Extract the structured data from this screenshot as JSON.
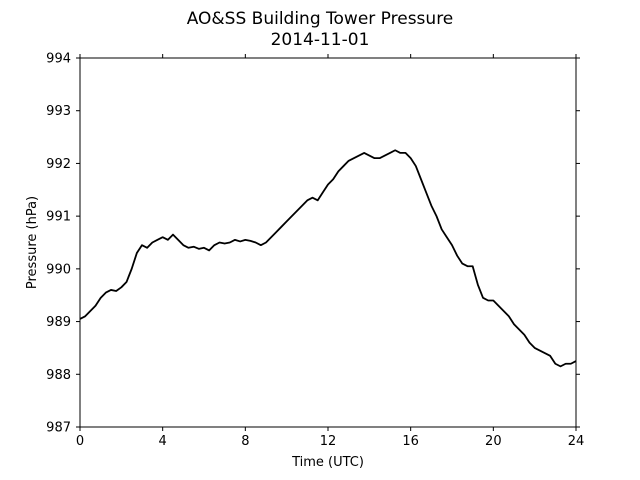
{
  "chart_data": {
    "type": "line",
    "title": "AO&SS Building Tower Pressure",
    "subtitle": "2014-11-01",
    "xlabel": "Time (UTC)",
    "ylabel": "Pressure (hPa)",
    "xlim": [
      0,
      24
    ],
    "ylim": [
      987,
      994
    ],
    "xticks": [
      "0",
      "4",
      "8",
      "12",
      "16",
      "20",
      "24"
    ],
    "yticks": [
      "987",
      "988",
      "989",
      "990",
      "991",
      "992",
      "993",
      "994"
    ],
    "grid": false,
    "line_color": "#000000",
    "x": [
      0,
      0.25,
      0.5,
      0.75,
      1.0,
      1.25,
      1.5,
      1.75,
      2.0,
      2.25,
      2.5,
      2.75,
      3.0,
      3.25,
      3.5,
      3.75,
      4.0,
      4.25,
      4.5,
      4.75,
      5.0,
      5.25,
      5.5,
      5.75,
      6.0,
      6.25,
      6.5,
      6.75,
      7.0,
      7.25,
      7.5,
      7.75,
      8.0,
      8.25,
      8.5,
      8.75,
      9.0,
      9.25,
      9.5,
      9.75,
      10.0,
      10.25,
      10.5,
      10.75,
      11.0,
      11.25,
      11.5,
      11.75,
      12.0,
      12.25,
      12.5,
      12.75,
      13.0,
      13.25,
      13.5,
      13.75,
      14.0,
      14.25,
      14.5,
      14.75,
      15.0,
      15.25,
      15.5,
      15.75,
      16.0,
      16.25,
      16.5,
      16.75,
      17.0,
      17.25,
      17.5,
      17.75,
      18.0,
      18.25,
      18.5,
      18.75,
      19.0,
      19.25,
      19.5,
      19.75,
      20.0,
      20.25,
      20.5,
      20.75,
      21.0,
      21.25,
      21.5,
      21.75,
      22.0,
      22.25,
      22.5,
      22.75,
      23.0,
      23.25,
      23.5,
      23.75,
      24.0
    ],
    "y": [
      989.05,
      989.1,
      989.2,
      989.3,
      989.45,
      989.55,
      989.6,
      989.58,
      989.65,
      989.75,
      990.0,
      990.3,
      990.45,
      990.4,
      990.5,
      990.55,
      990.6,
      990.55,
      990.65,
      990.55,
      990.45,
      990.4,
      990.42,
      990.38,
      990.4,
      990.35,
      990.45,
      990.5,
      990.48,
      990.5,
      990.55,
      990.52,
      990.55,
      990.53,
      990.5,
      990.45,
      990.5,
      990.6,
      990.7,
      990.8,
      990.9,
      991.0,
      991.1,
      991.2,
      991.3,
      991.35,
      991.3,
      991.45,
      991.6,
      991.7,
      991.85,
      991.95,
      992.05,
      992.1,
      992.15,
      992.2,
      992.15,
      992.1,
      992.1,
      992.15,
      992.2,
      992.25,
      992.2,
      992.2,
      992.1,
      991.95,
      991.7,
      991.45,
      991.2,
      991.0,
      990.75,
      990.6,
      990.45,
      990.25,
      990.1,
      990.05,
      990.05,
      989.7,
      989.45,
      989.4,
      989.4,
      989.3,
      989.2,
      989.1,
      988.95,
      988.85,
      988.75,
      988.6,
      988.5,
      988.45,
      988.4,
      988.35,
      988.2,
      988.15,
      988.2,
      988.2,
      988.25
    ]
  }
}
